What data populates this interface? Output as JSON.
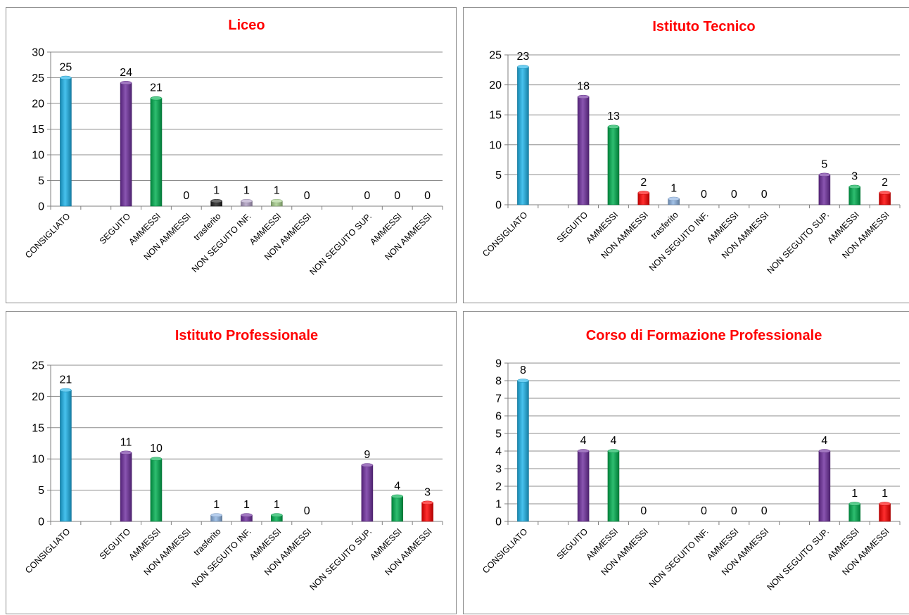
{
  "colors": {
    "consigliato": "#1EB4EA",
    "seguito": "#7030A0",
    "ammessi": "#00B050",
    "non_ammessi": "#FF0000",
    "trasferito_black": "#222222",
    "trasferito_light": "#8EB4E3",
    "light_purple": "#B3A2C7",
    "light_green": "#A9D18E",
    "title": "#FF0000"
  },
  "chart_data": [
    {
      "type": "bar",
      "title": "Liceo",
      "ylim": [
        0,
        30
      ],
      "yticks": [
        0,
        5,
        10,
        15,
        20,
        25,
        30
      ],
      "grid": true,
      "categories": [
        "CONSIGLIATO",
        "",
        "SEGUITO",
        "AMMESSI",
        "NON AMMESSI",
        "trasferito",
        "NON SEGUITO INF.",
        "AMMESSI",
        "NON AMMESSI",
        "",
        "NON SEGUITO SUP.",
        "AMMESSI",
        "NON AMMESSI"
      ],
      "values": [
        25,
        null,
        24,
        21,
        0,
        1,
        1,
        1,
        0,
        null,
        0,
        0,
        0
      ],
      "colors": [
        "#1EB4EA",
        "",
        "#7030A0",
        "#00B050",
        "#FF0000",
        "#222222",
        "#B3A2C7",
        "#A9D18E",
        "#FF0000",
        "",
        "#7030A0",
        "#00B050",
        "#FF0000"
      ]
    },
    {
      "type": "bar",
      "title": "Istituto Tecnico",
      "ylim": [
        0,
        25
      ],
      "yticks": [
        0,
        5,
        10,
        15,
        20,
        25
      ],
      "grid": true,
      "categories": [
        "CONSIGLIATO",
        "",
        "SEGUITO",
        "AMMESSI",
        "NON AMMESSI",
        "trasferito",
        "NON SEGUITO INF.",
        "AMMESSI",
        "NON AMMESSI",
        "",
        "NON SEGUITO SUP.",
        "AMMESSI",
        "NON AMMESSI"
      ],
      "values": [
        23,
        null,
        18,
        13,
        2,
        1,
        0,
        0,
        0,
        null,
        5,
        3,
        2
      ],
      "colors": [
        "#1EB4EA",
        "",
        "#7030A0",
        "#00B050",
        "#FF0000",
        "#8EB4E3",
        "#7030A0",
        "#00B050",
        "#FF0000",
        "",
        "#7030A0",
        "#00B050",
        "#FF0000"
      ]
    },
    {
      "type": "bar",
      "title": "Istituto Professionale",
      "ylim": [
        0,
        25
      ],
      "yticks": [
        0,
        5,
        10,
        15,
        20,
        25
      ],
      "grid": true,
      "categories": [
        "CONSIGLIATO",
        "",
        "SEGUITO",
        "AMMESSI",
        "NON AMMESSI",
        "trasferito",
        "NON SEGUITO INF.",
        "AMMESSI",
        "NON AMMESSI",
        "",
        "NON SEGUITO SUP.",
        "AMMESSI",
        "NON AMMESSI"
      ],
      "values": [
        21,
        null,
        11,
        10,
        null,
        1,
        1,
        1,
        0,
        null,
        9,
        4,
        3
      ],
      "colors": [
        "#1EB4EA",
        "",
        "#7030A0",
        "#00B050",
        "#FF0000",
        "#8EB4E3",
        "#7030A0",
        "#00B050",
        "#FF0000",
        "",
        "#7030A0",
        "#00B050",
        "#FF0000"
      ]
    },
    {
      "type": "bar",
      "title": "Corso di Formazione Professionale",
      "ylim": [
        0,
        9
      ],
      "yticks": [
        0,
        1,
        2,
        3,
        4,
        5,
        6,
        7,
        8,
        9
      ],
      "grid": true,
      "categories": [
        "CONSIGLIATO",
        "",
        "SEGUITO",
        "AMMESSI",
        "NON AMMESSI",
        "",
        "NON SEGUITO INF.",
        "AMMESSI",
        "NON AMMESSI",
        "",
        "NON SEGUITO SUP.",
        "AMMESSI",
        "NON AMMESSI"
      ],
      "values": [
        8,
        null,
        4,
        4,
        0,
        null,
        0,
        0,
        0,
        null,
        4,
        1,
        1
      ],
      "colors": [
        "#1EB4EA",
        "",
        "#7030A0",
        "#00B050",
        "#FF0000",
        "",
        "#7030A0",
        "#00B050",
        "#FF0000",
        "",
        "#7030A0",
        "#00B050",
        "#FF0000"
      ]
    }
  ]
}
